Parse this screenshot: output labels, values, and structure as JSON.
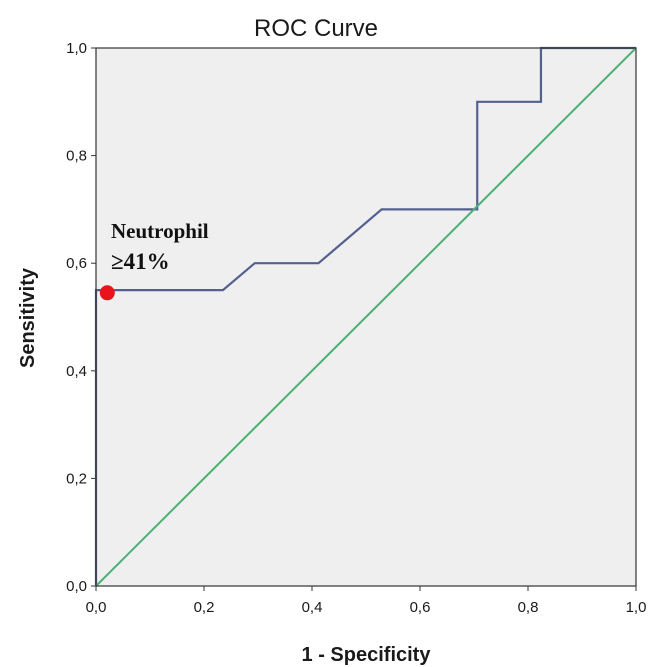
{
  "chart_data": {
    "type": "line",
    "title": "ROC Curve",
    "xlabel": "1 - Specificity",
    "ylabel": "Sensitivity",
    "xlim": [
      0.0,
      1.0
    ],
    "ylim": [
      0.0,
      1.0
    ],
    "x_ticks": [
      "0,0",
      "0,2",
      "0,4",
      "0,6",
      "0,8",
      "1,0"
    ],
    "y_ticks": [
      "0,0",
      "0,2",
      "0,4",
      "0,6",
      "0,8",
      "1,0"
    ],
    "grid": false,
    "background": "#efefef",
    "series": [
      {
        "name": "",
        "color": "#55608f",
        "points": [
          [
            0.0,
            0.0
          ],
          [
            0.0,
            0.55
          ],
          [
            0.235,
            0.55
          ],
          [
            0.294,
            0.6
          ],
          [
            0.412,
            0.6
          ],
          [
            0.529,
            0.7
          ],
          [
            0.706,
            0.7
          ],
          [
            0.706,
            0.9
          ],
          [
            0.824,
            0.9
          ],
          [
            0.824,
            1.0
          ],
          [
            1.0,
            1.0
          ]
        ]
      },
      {
        "name": "",
        "color": "#4caf74",
        "points": [
          [
            0.0,
            0.0
          ],
          [
            1.0,
            1.0
          ]
        ]
      }
    ],
    "annotation": {
      "line1": "Neutrophil",
      "line2": "≥41%",
      "point": [
        0.02,
        0.545
      ],
      "color": "#e8131b"
    }
  }
}
